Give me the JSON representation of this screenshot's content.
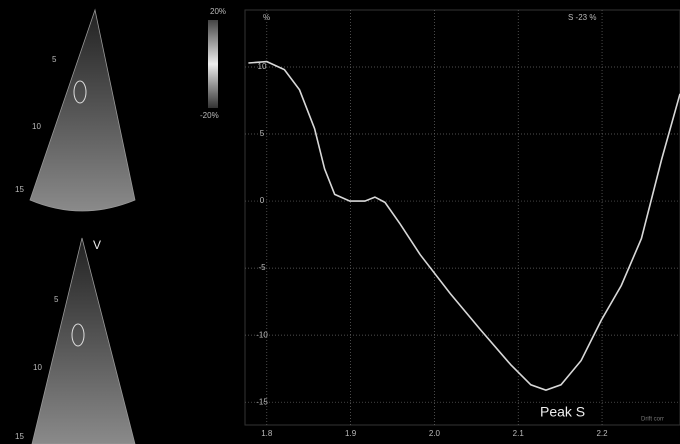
{
  "chart_data": {
    "type": "line",
    "y_label": "%",
    "annotations": [
      "S -23 %",
      "Peak S",
      "Drift corr"
    ],
    "x": [
      1.778,
      1.8,
      1.821,
      1.839,
      1.857,
      1.869,
      1.881,
      1.899,
      1.917,
      1.929,
      1.941,
      1.959,
      1.983,
      2.019,
      2.055,
      2.091,
      2.115,
      2.133,
      2.151,
      2.175,
      2.199,
      2.223,
      2.247,
      2.271,
      2.293
    ],
    "values": [
      10.3,
      10.4,
      9.8,
      8.3,
      5.4,
      2.4,
      0.5,
      0,
      0,
      0.3,
      -0.1,
      -1.7,
      -4,
      -6.9,
      -9.6,
      -12.2,
      -13.7,
      -14.1,
      -13.7,
      -11.9,
      -8.9,
      -6.3,
      -2.8,
      3.1,
      8.0
    ],
    "color": "#d8d8d8",
    "xlim": [
      1.774,
      2.293
    ],
    "ylim": [
      -16.7,
      14.25
    ],
    "xticks": [
      1.8,
      1.9,
      {
        "value": 2,
        "label": "2.0"
      },
      2.1,
      2.2
    ],
    "yticks": [
      10,
      5,
      0,
      -5,
      -10,
      -15
    ],
    "grid": true
  },
  "color_bar": {
    "max": "20%",
    "min": "-20%"
  },
  "ultrasound": {
    "top": {
      "depth_labels": [
        "5",
        "10",
        "15"
      ]
    },
    "bottom": {
      "depth_labels": [
        "5",
        "10",
        "15"
      ],
      "marker": "V"
    }
  }
}
